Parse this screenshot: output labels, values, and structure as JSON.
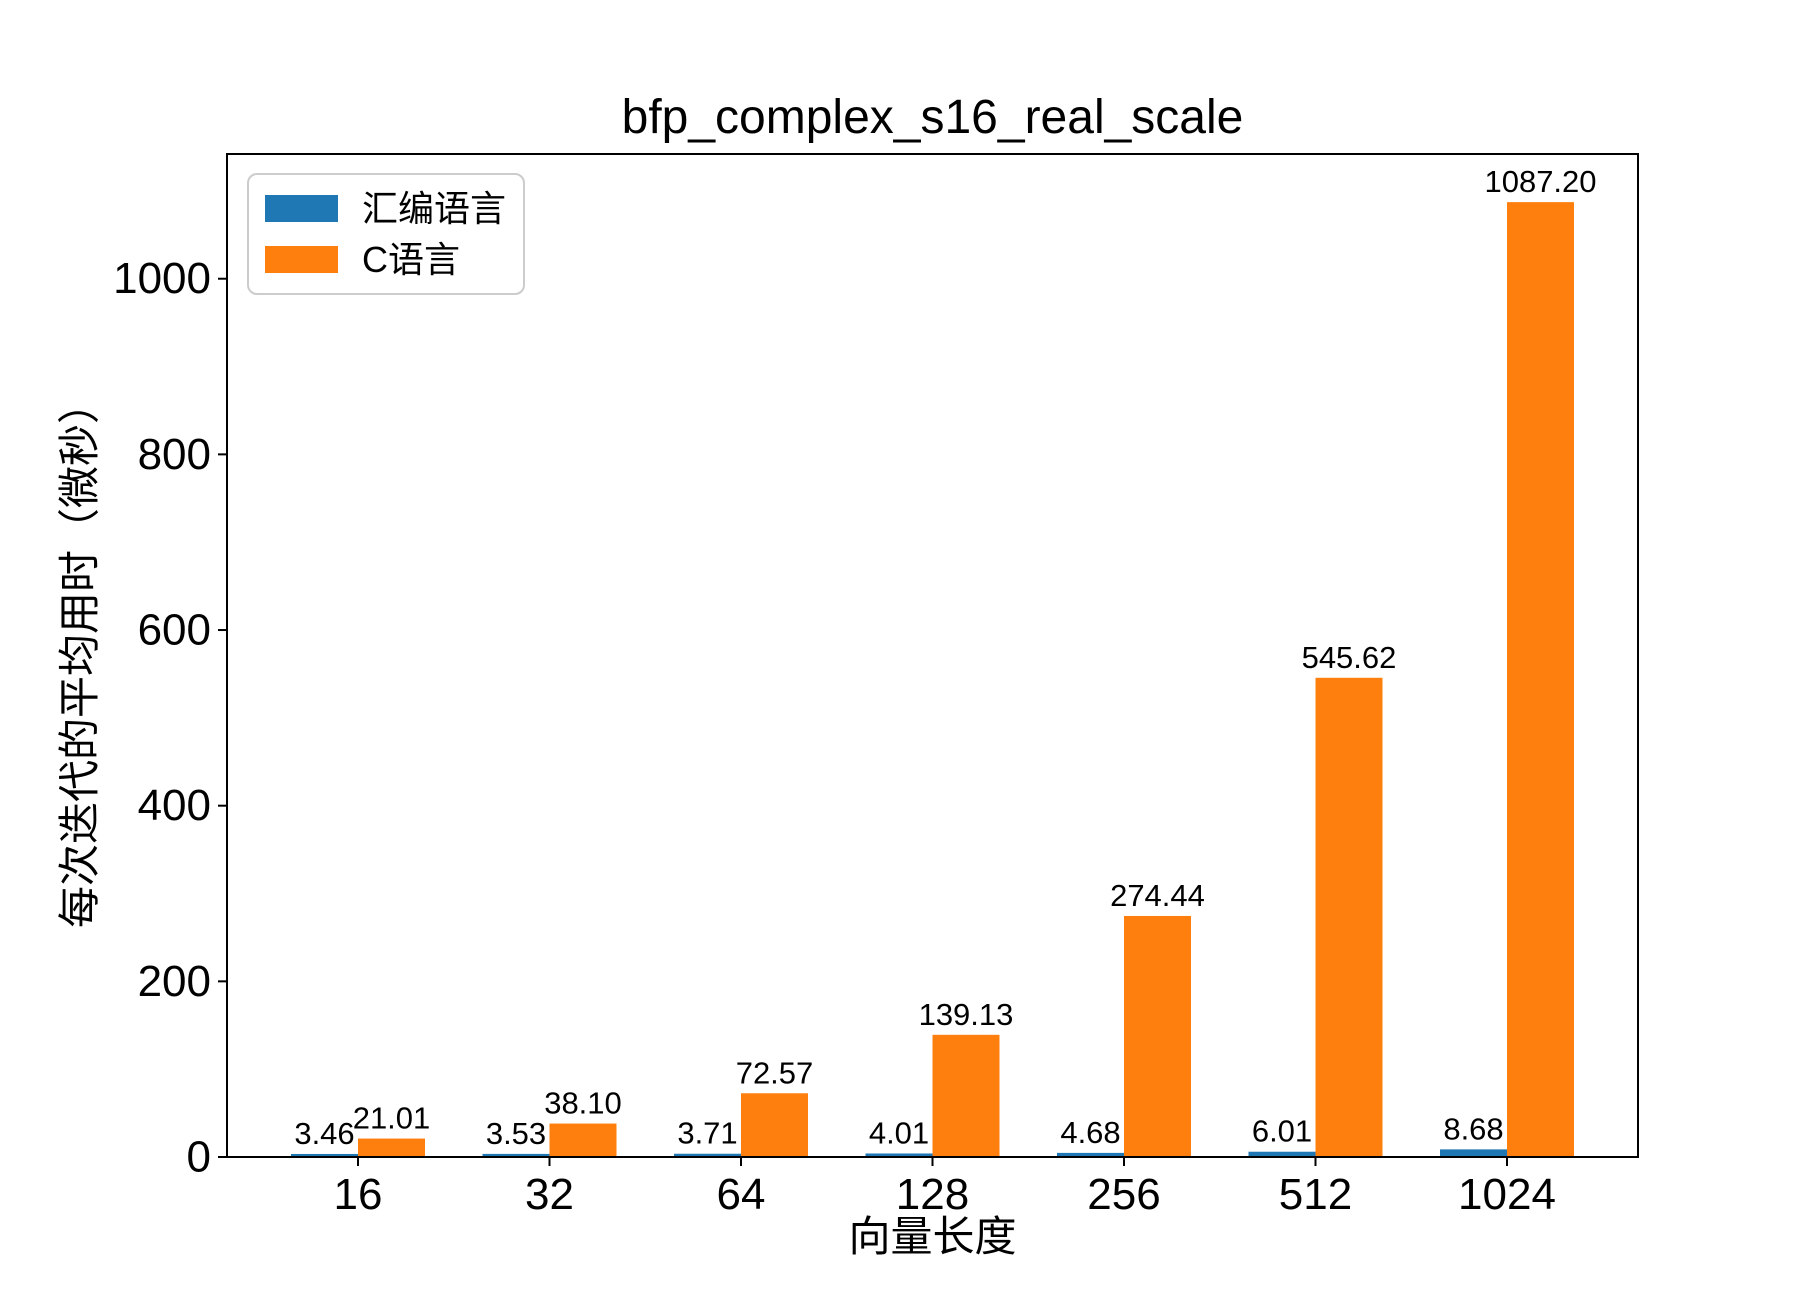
{
  "figure": {
    "background": "#ffffff",
    "text_color": "#000000",
    "axis_color": "#000000",
    "legend_border_color": "#cccccc"
  },
  "chart_data": {
    "type": "bar",
    "title": "bfp_complex_s16_real_scale",
    "xlabel": "向量长度",
    "ylabel": "每次迭代的平均用时（微秒）",
    "categories": [
      "16",
      "32",
      "64",
      "128",
      "256",
      "512",
      "1024"
    ],
    "series": [
      {
        "name": "汇编语言",
        "color": "#1f77b4",
        "values": [
          3.46,
          3.53,
          3.71,
          4.01,
          4.68,
          6.01,
          8.68
        ]
      },
      {
        "name": "C语言",
        "color": "#ff7f0e",
        "values": [
          21.01,
          38.1,
          72.57,
          139.13,
          274.44,
          545.62,
          1087.2
        ]
      }
    ],
    "bar_value_labels": true,
    "yticks": [
      0,
      200,
      400,
      600,
      800,
      1000
    ],
    "ylim": [
      0,
      1142
    ],
    "grid": false,
    "legend_position": "upper-left"
  }
}
